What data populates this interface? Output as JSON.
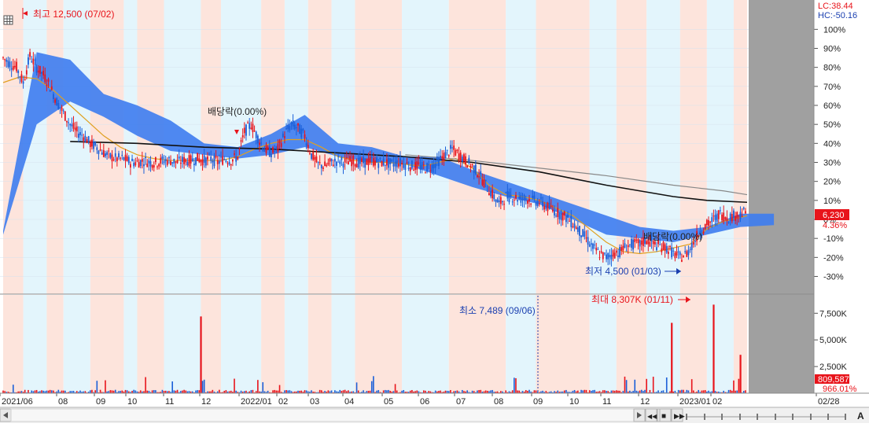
{
  "price_panel": {
    "high_label": "최고 12,500 (07/02)",
    "low_label": "최저 4,500 (01/03)",
    "dividend_label_1": "배당락(0.00%)",
    "dividend_label_2": "배당락(0.00%)",
    "lc_label": "LC:38.44",
    "hc_label": "HC:-50.16",
    "current_price_tag": "6,230",
    "current_pct_tag": "4.36%"
  },
  "volume_panel": {
    "max_label": "최대 8,307K (01/11)",
    "min_label": "최소 7,489 (09/06)",
    "current_volume_tag": "809,587",
    "current_vol_pct_tag": "966.01%"
  },
  "colors": {
    "up": "#e8141b",
    "down": "#1a5fd8",
    "ichimoku_cloud": "#3d7cf0",
    "ma_short": "#e0a020",
    "ma_long": "#111111",
    "ma_longer": "#888888",
    "band_up": "#fde4dc",
    "band_down": "#e3f5fc",
    "axis_gray": "#8c8c8c"
  },
  "chart_data": [
    {
      "type": "candlestick",
      "title": "",
      "y_axis_unit": "%",
      "ylim": [
        -36,
        108
      ],
      "y_ticks": [
        "100%",
        "90%",
        "80%",
        "70%",
        "60%",
        "50%",
        "40%",
        "30%",
        "20%",
        "10%",
        "0%",
        "-10%",
        "-20%",
        "-30%"
      ],
      "x_tick_labels": [
        "2021/06",
        "08",
        "09",
        "10",
        "11",
        "12",
        "2022/01",
        "02",
        "03",
        "04",
        "05",
        "06",
        "07",
        "08",
        "09",
        "10",
        "11",
        "12",
        "2023/01",
        "02",
        "02/28"
      ],
      "series": [
        {
          "name": "close_pct",
          "values_path": "points",
          "points": [
            [
              0,
              85
            ],
            [
              4,
              82
            ],
            [
              8,
              80
            ],
            [
              12,
              72
            ],
            [
              16,
              86
            ],
            [
              20,
              80
            ],
            [
              24,
              76
            ],
            [
              28,
              70
            ],
            [
              32,
              62
            ],
            [
              36,
              56
            ],
            [
              40,
              50
            ],
            [
              44,
              46
            ],
            [
              48,
              44
            ],
            [
              52,
              40
            ],
            [
              56,
              38
            ],
            [
              60,
              35
            ],
            [
              64,
              33
            ],
            [
              68,
              32
            ],
            [
              72,
              32
            ],
            [
              76,
              30
            ],
            [
              80,
              30
            ],
            [
              84,
              31
            ],
            [
              88,
              30
            ],
            [
              92,
              30
            ],
            [
              96,
              31
            ],
            [
              100,
              31
            ],
            [
              104,
              30
            ],
            [
              108,
              31
            ],
            [
              112,
              31
            ],
            [
              116,
              32
            ],
            [
              120,
              31
            ],
            [
              124,
              32
            ],
            [
              128,
              30
            ],
            [
              132,
              32
            ],
            [
              136,
              31
            ],
            [
              140,
              33
            ],
            [
              144,
              46
            ],
            [
              148,
              50
            ],
            [
              152,
              43
            ],
            [
              156,
              37
            ],
            [
              160,
              35
            ],
            [
              164,
              37
            ],
            [
              168,
              45
            ],
            [
              172,
              50
            ],
            [
              176,
              48
            ],
            [
              180,
              44
            ],
            [
              184,
              34
            ],
            [
              188,
              29
            ],
            [
              192,
              28
            ],
            [
              196,
              30
            ],
            [
              200,
              31
            ],
            [
              204,
              30
            ],
            [
              208,
              31
            ],
            [
              212,
              30
            ],
            [
              216,
              30
            ],
            [
              220,
              31
            ],
            [
              224,
              30
            ],
            [
              228,
              30
            ],
            [
              232,
              29
            ],
            [
              236,
              30
            ],
            [
              240,
              29
            ],
            [
              244,
              28
            ],
            [
              248,
              28
            ],
            [
              252,
              27
            ],
            [
              256,
              28
            ],
            [
              260,
              31
            ],
            [
              264,
              34
            ],
            [
              268,
              37
            ],
            [
              272,
              34
            ],
            [
              276,
              31
            ],
            [
              280,
              28
            ],
            [
              284,
              24
            ],
            [
              288,
              18
            ],
            [
              292,
              13
            ],
            [
              296,
              8
            ],
            [
              300,
              12
            ],
            [
              304,
              12
            ],
            [
              308,
              11
            ],
            [
              312,
              11
            ],
            [
              316,
              10
            ],
            [
              320,
              9
            ],
            [
              324,
              7
            ],
            [
              328,
              5
            ],
            [
              332,
              3
            ],
            [
              336,
              1
            ],
            [
              340,
              -2
            ],
            [
              344,
              -6
            ],
            [
              348,
              -10
            ],
            [
              352,
              -15
            ],
            [
              356,
              -18
            ],
            [
              360,
              -20
            ],
            [
              364,
              -18
            ],
            [
              368,
              -17
            ],
            [
              372,
              -14
            ],
            [
              376,
              -13
            ],
            [
              380,
              -13
            ],
            [
              384,
              -11
            ],
            [
              388,
              -13
            ],
            [
              392,
              -14
            ],
            [
              396,
              -15
            ],
            [
              400,
              -18
            ],
            [
              404,
              -20
            ],
            [
              408,
              -18
            ],
            [
              412,
              -12
            ],
            [
              416,
              -6
            ],
            [
              420,
              -3
            ],
            [
              424,
              0
            ],
            [
              428,
              3
            ],
            [
              432,
              1
            ],
            [
              436,
              2
            ],
            [
              440,
              3
            ],
            [
              444,
              4
            ]
          ]
        },
        {
          "name": "MA short",
          "values_path": "points",
          "points": [
            [
              0,
              72
            ],
            [
              10,
              75
            ],
            [
              20,
              74
            ],
            [
              30,
              68
            ],
            [
              40,
              60
            ],
            [
              50,
              52
            ],
            [
              60,
              44
            ],
            [
              70,
              38
            ],
            [
              80,
              34
            ],
            [
              90,
              32
            ],
            [
              100,
              31
            ],
            [
              110,
              31
            ],
            [
              120,
              31
            ],
            [
              130,
              31
            ],
            [
              140,
              33
            ],
            [
              150,
              37
            ],
            [
              160,
              40
            ],
            [
              170,
              42
            ],
            [
              180,
              42
            ],
            [
              190,
              38
            ],
            [
              200,
              33
            ],
            [
              210,
              31
            ],
            [
              220,
              30
            ],
            [
              230,
              30
            ],
            [
              240,
              29
            ],
            [
              250,
              28
            ],
            [
              260,
              30
            ],
            [
              270,
              32
            ],
            [
              280,
              27
            ],
            [
              290,
              18
            ],
            [
              300,
              13
            ],
            [
              310,
              12
            ],
            [
              320,
              10
            ],
            [
              330,
              6
            ],
            [
              340,
              2
            ],
            [
              350,
              -5
            ],
            [
              360,
              -12
            ],
            [
              370,
              -17
            ],
            [
              380,
              -18
            ],
            [
              390,
              -17
            ],
            [
              400,
              -15
            ],
            [
              410,
              -13
            ],
            [
              420,
              -5
            ],
            [
              430,
              -1
            ],
            [
              440,
              1
            ],
            [
              444,
              2
            ]
          ]
        },
        {
          "name": "MA long",
          "values_path": "points",
          "points": [
            [
              40,
              41
            ],
            [
              80,
              40
            ],
            [
              120,
              38
            ],
            [
              160,
              37
            ],
            [
              200,
              35
            ],
            [
              240,
              33
            ],
            [
              280,
              30
            ],
            [
              320,
              25
            ],
            [
              360,
              18
            ],
            [
              400,
              12
            ],
            [
              420,
              10
            ],
            [
              444,
              9
            ]
          ]
        },
        {
          "name": "MA longer",
          "values_path": "points",
          "points": [
            [
              240,
              34
            ],
            [
              280,
              31
            ],
            [
              320,
              27
            ],
            [
              360,
              23
            ],
            [
              400,
              18
            ],
            [
              430,
              15
            ],
            [
              444,
              13
            ]
          ]
        }
      ],
      "ichimoku_cloud": {
        "name": "Ichimoku cloud",
        "upper": [
          [
            0,
            -6
          ],
          [
            20,
            88
          ],
          [
            40,
            84
          ],
          [
            60,
            66
          ],
          [
            80,
            60
          ],
          [
            100,
            52
          ],
          [
            120,
            40
          ],
          [
            140,
            38
          ],
          [
            160,
            45
          ],
          [
            180,
            55
          ],
          [
            200,
            40
          ],
          [
            220,
            38
          ],
          [
            240,
            33
          ],
          [
            260,
            33
          ],
          [
            280,
            26
          ],
          [
            300,
            20
          ],
          [
            320,
            14
          ],
          [
            340,
            8
          ],
          [
            360,
            2
          ],
          [
            380,
            -4
          ],
          [
            400,
            -6
          ],
          [
            420,
            -4
          ],
          [
            440,
            3
          ],
          [
            460,
            3
          ]
        ],
        "lower": [
          [
            0,
            -8
          ],
          [
            20,
            50
          ],
          [
            40,
            62
          ],
          [
            60,
            54
          ],
          [
            80,
            44
          ],
          [
            100,
            36
          ],
          [
            120,
            34
          ],
          [
            140,
            32
          ],
          [
            160,
            34
          ],
          [
            180,
            38
          ],
          [
            200,
            33
          ],
          [
            220,
            30
          ],
          [
            240,
            29
          ],
          [
            260,
            23
          ],
          [
            280,
            17
          ],
          [
            300,
            12
          ],
          [
            320,
            8
          ],
          [
            340,
            0
          ],
          [
            360,
            -8
          ],
          [
            380,
            -10
          ],
          [
            400,
            -12
          ],
          [
            420,
            -8
          ],
          [
            440,
            -4
          ],
          [
            460,
            -3
          ]
        ]
      },
      "annotations": [
        "최고 12,500 (07/02)",
        "최저 4,500 (01/03)",
        "배당락(0.00%)"
      ]
    },
    {
      "type": "bar",
      "title": "",
      "y_axis_unit": "K",
      "ylim": [
        0,
        9000
      ],
      "y_ticks": [
        "7,500K",
        "5,000K",
        "2,500K"
      ],
      "spikes": [
        {
          "at": 118,
          "value": 7200,
          "dir": "up"
        },
        {
          "at": 399,
          "value": 6600,
          "dir": "up"
        },
        {
          "at": 424,
          "value": 8307,
          "dir": "up"
        },
        {
          "at": 440,
          "value": 3600,
          "dir": "up"
        }
      ],
      "annotations": [
        "최대 8,307K (01/11)",
        "최소 7,489 (09/06)"
      ]
    }
  ],
  "controls": {
    "first_label": "◀◀",
    "prev_label": "◀",
    "stop_label": "■",
    "next_label": "▶",
    "last_label": "▶▶",
    "letter_label": "A"
  }
}
